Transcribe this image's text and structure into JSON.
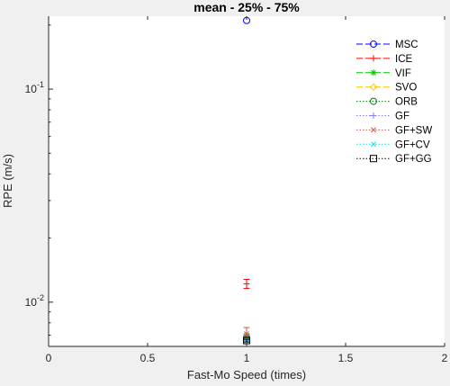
{
  "chart_data": {
    "type": "scatter",
    "title": "mean - 25% - 75%",
    "xlabel": "Fast-Mo Speed (times)",
    "ylabel": "RPE (m/s)",
    "xlim": [
      0,
      2
    ],
    "ylim": [
      0.0062,
      0.22
    ],
    "yscale": "log",
    "grid": false,
    "legend_position": "top-right",
    "x_ticks": [
      {
        "value": 0,
        "label": "0"
      },
      {
        "value": 0.5,
        "label": "0.5"
      },
      {
        "value": 1,
        "label": "1"
      },
      {
        "value": 1.5,
        "label": "1.5"
      },
      {
        "value": 2,
        "label": "2"
      }
    ],
    "y_ticks": [
      {
        "value": 0.01,
        "base": "10",
        "exp": "-2"
      },
      {
        "value": 0.1,
        "base": "10",
        "exp": "-1"
      }
    ],
    "series": [
      {
        "name": "MSC",
        "color": "#0000ff",
        "line": "solid",
        "marker": "circle",
        "x": 1,
        "mean": 0.21,
        "q25": 0.21,
        "q75": 0.21
      },
      {
        "name": "ICE",
        "color": "#ff0000",
        "line": "solid",
        "marker": "plus",
        "x": 1,
        "mean": 0.0122,
        "q25": 0.0116,
        "q75": 0.0128
      },
      {
        "name": "VIF",
        "color": "#00c000",
        "line": "solid",
        "marker": "asterisk",
        "x": 1,
        "mean": 0.0069,
        "q25": 0.0067,
        "q75": 0.0071
      },
      {
        "name": "SVO",
        "color": "#ffc000",
        "line": "solid",
        "marker": "diamond",
        "x": 1,
        "mean": 0.0069,
        "q25": 0.0068,
        "q75": 0.007
      },
      {
        "name": "ORB",
        "color": "#008000",
        "line": "dotted",
        "marker": "circle",
        "x": 1,
        "mean": 0.0068,
        "q25": 0.0067,
        "q75": 0.0069
      },
      {
        "name": "GF",
        "color": "#7f7fff",
        "line": "dotted",
        "marker": "plus",
        "x": 1,
        "mean": 0.0068,
        "q25": 0.0066,
        "q75": 0.007
      },
      {
        "name": "GF+SW",
        "color": "#d9534f",
        "line": "dotted",
        "marker": "x",
        "x": 1,
        "mean": 0.0071,
        "q25": 0.0068,
        "q75": 0.0076
      },
      {
        "name": "GF+CV",
        "color": "#00e5e5",
        "line": "dotted",
        "marker": "x",
        "x": 1,
        "mean": 0.0066,
        "q25": 0.0065,
        "q75": 0.0067
      },
      {
        "name": "GF+GG",
        "color": "#000000",
        "line": "dotted",
        "marker": "square",
        "x": 1,
        "mean": 0.0066,
        "q25": 0.0065,
        "q75": 0.0067
      }
    ]
  }
}
